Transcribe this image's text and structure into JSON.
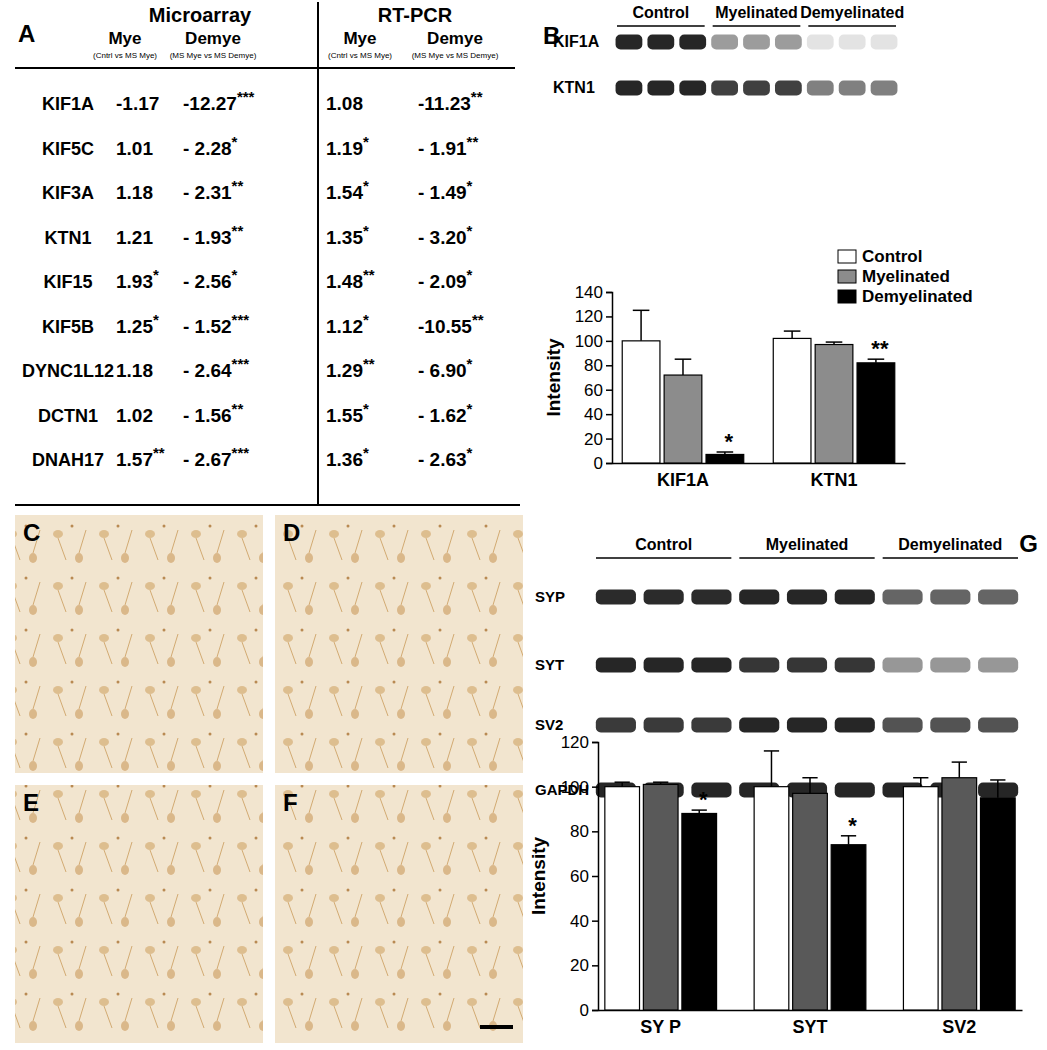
{
  "table": {
    "panel": "A",
    "groups": [
      {
        "title": "Microarray"
      },
      {
        "title": "RT-PCR"
      }
    ],
    "columns": [
      {
        "title": "Mye",
        "subtitle": "(Cntrl vs MS Mye)"
      },
      {
        "title": "Demye",
        "subtitle": "(MS Mye vs MS Demye)"
      },
      {
        "title": "Mye",
        "subtitle": "(Cntrl vs MS Mye)"
      },
      {
        "title": "Demye",
        "subtitle": "(MS Mye vs MS Demye)"
      }
    ],
    "rows": [
      {
        "gene": "KIF1A",
        "cells": [
          {
            "value": "-1.17",
            "sig": null
          },
          {
            "value": "-12.27",
            "sig": "***"
          },
          {
            "value": "1.08",
            "sig": null
          },
          {
            "value": "-11.23",
            "sig": "**"
          }
        ]
      },
      {
        "gene": "KIF5C",
        "cells": [
          {
            "value": "1.01",
            "sig": null
          },
          {
            "value": "- 2.28",
            "sig": "*"
          },
          {
            "value": "1.19",
            "sig": "*"
          },
          {
            "value": "- 1.91",
            "sig": "**"
          }
        ]
      },
      {
        "gene": "KIF3A",
        "cells": [
          {
            "value": "1.18",
            "sig": null
          },
          {
            "value": "- 2.31",
            "sig": "**"
          },
          {
            "value": "1.54",
            "sig": "*"
          },
          {
            "value": "- 1.49",
            "sig": "*"
          }
        ]
      },
      {
        "gene": "KTN1",
        "cells": [
          {
            "value": "1.21",
            "sig": null
          },
          {
            "value": "- 1.93",
            "sig": "**"
          },
          {
            "value": "1.35",
            "sig": "*"
          },
          {
            "value": "- 3.20",
            "sig": "*"
          }
        ]
      },
      {
        "gene": "KIF15",
        "cells": [
          {
            "value": "1.93",
            "sig": "*"
          },
          {
            "value": "- 2.56",
            "sig": "*"
          },
          {
            "value": "1.48",
            "sig": "**"
          },
          {
            "value": "- 2.09",
            "sig": "*"
          }
        ]
      },
      {
        "gene": "KIF5B",
        "cells": [
          {
            "value": "1.25",
            "sig": "*"
          },
          {
            "value": "- 1.52",
            "sig": "***"
          },
          {
            "value": "1.12",
            "sig": "*"
          },
          {
            "value": "-10.55",
            "sig": "**"
          }
        ]
      },
      {
        "gene": "DYNC1L12",
        "cells": [
          {
            "value": "1.18",
            "sig": null
          },
          {
            "value": "- 2.64",
            "sig": "***"
          },
          {
            "value": "1.29",
            "sig": "**"
          },
          {
            "value": "- 6.90",
            "sig": "*"
          }
        ]
      },
      {
        "gene": "DCTN1",
        "cells": [
          {
            "value": "1.02",
            "sig": null
          },
          {
            "value": "- 1.56",
            "sig": "**"
          },
          {
            "value": "1.55",
            "sig": "*"
          },
          {
            "value": "- 1.62",
            "sig": "*"
          }
        ]
      },
      {
        "gene": "DNAH17",
        "cells": [
          {
            "value": "1.57",
            "sig": "**"
          },
          {
            "value": "- 2.67",
            "sig": "***"
          },
          {
            "value": "1.36",
            "sig": "*"
          },
          {
            "value": "- 2.63",
            "sig": "*"
          }
        ]
      }
    ]
  },
  "chart_data": [
    {
      "type": "bar",
      "panel": "B",
      "ylabel": "Intensity",
      "categories": [
        "KIF1A",
        "KTN1"
      ],
      "series": [
        {
          "name": "Control",
          "color": "#ffffff",
          "values": [
            100,
            102
          ],
          "errors": [
            25,
            6
          ],
          "significance": [
            null,
            null
          ]
        },
        {
          "name": "Myelinated",
          "color": "#8c8c8c",
          "values": [
            72,
            97
          ],
          "errors": [
            13,
            2
          ],
          "significance": [
            null,
            null
          ]
        },
        {
          "name": "Demyelinated",
          "color": "#000000",
          "values": [
            7,
            82
          ],
          "errors": [
            2,
            3
          ],
          "significance": [
            "*",
            "**"
          ]
        }
      ],
      "ylim": [
        0,
        140
      ],
      "yticks": [
        0,
        20,
        40,
        60,
        80,
        100,
        120,
        140
      ],
      "legend": "top-right",
      "blot_rows": [
        "KIF1A",
        "KTN1"
      ]
    },
    {
      "type": "bar",
      "panel": "G",
      "ylabel": "Intensity",
      "categories": [
        "SY P",
        "SYT",
        "SV2"
      ],
      "series": [
        {
          "name": "Control",
          "color": "#ffffff",
          "values": [
            100,
            100,
            100
          ],
          "errors": [
            2,
            16,
            4
          ],
          "significance": [
            null,
            null,
            null
          ]
        },
        {
          "name": "Myelinated",
          "color": "#595959",
          "values": [
            101,
            97,
            104
          ],
          "errors": [
            1,
            7,
            7
          ],
          "significance": [
            null,
            null,
            null
          ]
        },
        {
          "name": "Demyelinated",
          "color": "#000000",
          "values": [
            88,
            74,
            95
          ],
          "errors": [
            1.5,
            4,
            8
          ],
          "significance": [
            "*",
            "*",
            null
          ]
        }
      ],
      "ylim": [
        0,
        120
      ],
      "yticks": [
        0,
        20,
        40,
        60,
        80,
        100,
        120
      ],
      "blot_rows": [
        "SYP",
        "SYT",
        "SV2",
        "GAPDH"
      ]
    }
  ],
  "images": [
    {
      "panel": "C"
    },
    {
      "panel": "D"
    },
    {
      "panel": "E"
    },
    {
      "panel": "F"
    }
  ]
}
